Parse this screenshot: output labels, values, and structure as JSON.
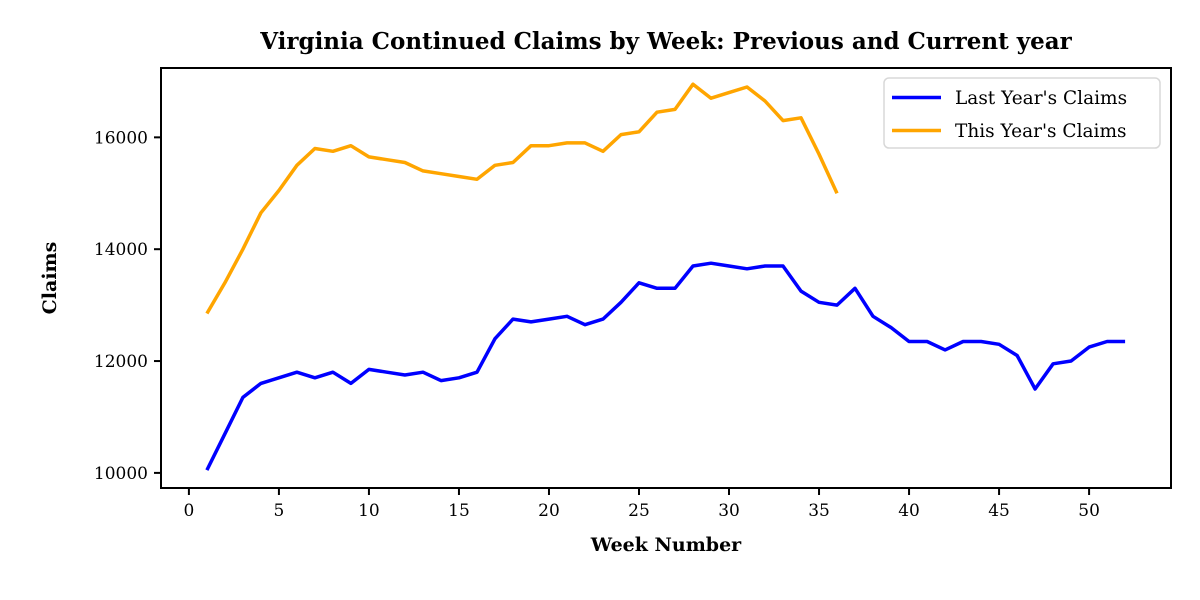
{
  "page": {
    "background": "#ffffff"
  },
  "chart_data": {
    "type": "line",
    "title": "Virginia Continued Claims by Week: Previous and Current year",
    "xlabel": "Week Number",
    "ylabel": "Claims",
    "x_ticks": [
      0,
      5,
      10,
      15,
      20,
      25,
      30,
      35,
      40,
      45,
      50
    ],
    "y_ticks": [
      10000,
      12000,
      14000,
      16000
    ],
    "xlim": [
      -1.55,
      54.55
    ],
    "ylim": [
      9730,
      17240
    ],
    "grid": false,
    "legend": {
      "position": "upper-right",
      "entries": [
        "Last Year's Claims",
        "This Year's Claims"
      ]
    },
    "series": [
      {
        "name": "Last Year's Claims",
        "color": "#0000ff",
        "x": [
          1,
          2,
          3,
          4,
          5,
          6,
          7,
          8,
          9,
          10,
          11,
          12,
          13,
          14,
          15,
          16,
          17,
          18,
          19,
          20,
          21,
          22,
          23,
          24,
          25,
          26,
          27,
          28,
          29,
          30,
          31,
          32,
          33,
          34,
          35,
          36,
          37,
          38,
          39,
          40,
          41,
          42,
          43,
          44,
          45,
          46,
          47,
          48,
          49,
          50,
          51,
          52
        ],
        "values": [
          10050,
          10700,
          11350,
          11600,
          11700,
          11800,
          11700,
          11800,
          11600,
          11850,
          11800,
          11750,
          11800,
          11650,
          11700,
          11800,
          12400,
          12750,
          12700,
          12750,
          12800,
          12650,
          12750,
          13050,
          13400,
          13300,
          13300,
          13700,
          13750,
          13700,
          13650,
          13700,
          13700,
          13250,
          13050,
          13000,
          13300,
          12800,
          12600,
          12350,
          12350,
          12200,
          12350,
          12350,
          12300,
          12100,
          11500,
          11950,
          12000,
          12250,
          12350,
          12350
        ]
      },
      {
        "name": "This Year's Claims",
        "color": "#ffa500",
        "x": [
          1,
          2,
          3,
          4,
          5,
          6,
          7,
          8,
          9,
          10,
          11,
          12,
          13,
          14,
          15,
          16,
          17,
          18,
          19,
          20,
          21,
          22,
          23,
          24,
          25,
          26,
          27,
          28,
          29,
          30,
          31,
          32,
          33,
          34,
          35,
          36
        ],
        "values": [
          12850,
          13400,
          14000,
          14650,
          15050,
          15500,
          15800,
          15750,
          15850,
          15650,
          15600,
          15550,
          15400,
          15350,
          15300,
          15250,
          15500,
          15550,
          15850,
          15850,
          15900,
          15900,
          15750,
          16050,
          16100,
          16450,
          16500,
          16950,
          16700,
          16800,
          16900,
          16650,
          16300,
          16350,
          15700,
          15000
        ]
      }
    ]
  }
}
